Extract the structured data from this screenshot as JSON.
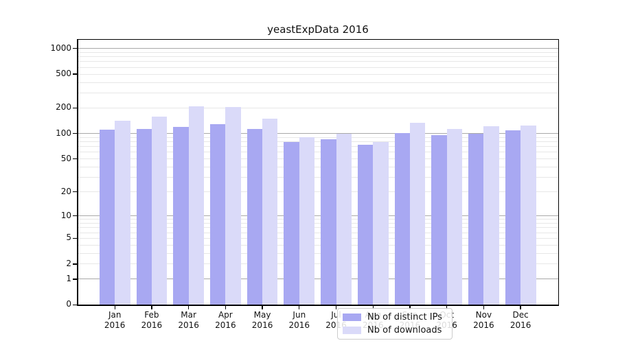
{
  "title": "yeastExpData 2016",
  "chart_data": {
    "type": "bar",
    "title": "yeastExpData 2016",
    "months": [
      "Jan",
      "Feb",
      "Mar",
      "Apr",
      "May",
      "Jun",
      "Jul",
      "Aug",
      "Sep",
      "Oct",
      "Nov",
      "Dec"
    ],
    "year": "2016",
    "categories": [
      "Jan 2016",
      "Feb 2016",
      "Mar 2016",
      "Apr 2016",
      "May 2016",
      "Jun 2016",
      "Jul 2016",
      "Aug 2016",
      "Sep 2016",
      "Oct 2016",
      "Nov 2016",
      "Dec 2016"
    ],
    "series": [
      {
        "name": "Nb of distinct IPs",
        "color": "#a8a8f2",
        "values": [
          111,
          113,
          119,
          128,
          113,
          80,
          85,
          74,
          101,
          96,
          100,
          110
        ]
      },
      {
        "name": "Nb of downloads",
        "color": "#dadaf9",
        "values": [
          142,
          158,
          208,
          206,
          151,
          90,
          100,
          80,
          134,
          113,
          123,
          124
        ]
      }
    ],
    "y_scale": "log10(1+value)",
    "y_ticks": [
      0,
      1,
      2,
      5,
      10,
      20,
      50,
      100,
      200,
      500,
      1000
    ],
    "ylim": [
      0,
      1000
    ],
    "grid": true,
    "grid_major_color": "#a8a8a8",
    "grid_minor_color": "#e7e7e7",
    "legend_position": "inside bottom-center"
  }
}
